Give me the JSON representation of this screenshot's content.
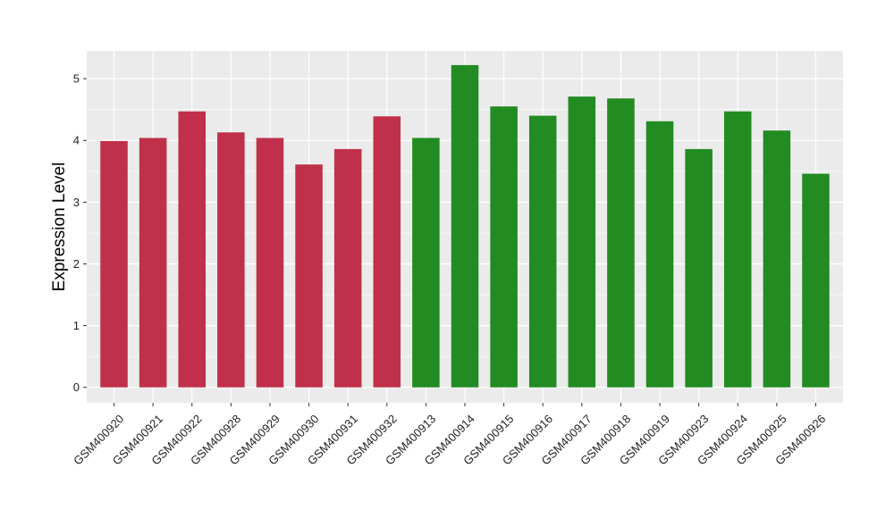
{
  "chart_data": {
    "type": "bar",
    "title": "",
    "xlabel": "",
    "ylabel": "Expression Level",
    "ylim": [
      -0.25,
      5.45
    ],
    "yticks": [
      0,
      1,
      2,
      3,
      4,
      5
    ],
    "grid": true,
    "legend": "none",
    "categories": [
      "GSM400920",
      "GSM400921",
      "GSM400922",
      "GSM400928",
      "GSM400929",
      "GSM400930",
      "GSM400931",
      "GSM400932",
      "GSM400913",
      "GSM400914",
      "GSM400915",
      "GSM400916",
      "GSM400917",
      "GSM400918",
      "GSM400919",
      "GSM400923",
      "GSM400924",
      "GSM400925",
      "GSM400926"
    ],
    "values": [
      3.99,
      4.04,
      4.47,
      4.13,
      4.04,
      3.61,
      3.86,
      4.39,
      4.04,
      5.22,
      4.55,
      4.4,
      4.71,
      4.68,
      4.31,
      3.86,
      4.47,
      4.16,
      3.46
    ],
    "bar_colors": [
      "#c0304a",
      "#c0304a",
      "#c0304a",
      "#c0304a",
      "#c0304a",
      "#c0304a",
      "#c0304a",
      "#c0304a",
      "#228b22",
      "#228b22",
      "#228b22",
      "#228b22",
      "#228b22",
      "#228b22",
      "#228b22",
      "#228b22",
      "#228b22",
      "#228b22",
      "#228b22"
    ],
    "panel_background": "#ebebeb",
    "grid_color": "#ffffff"
  }
}
